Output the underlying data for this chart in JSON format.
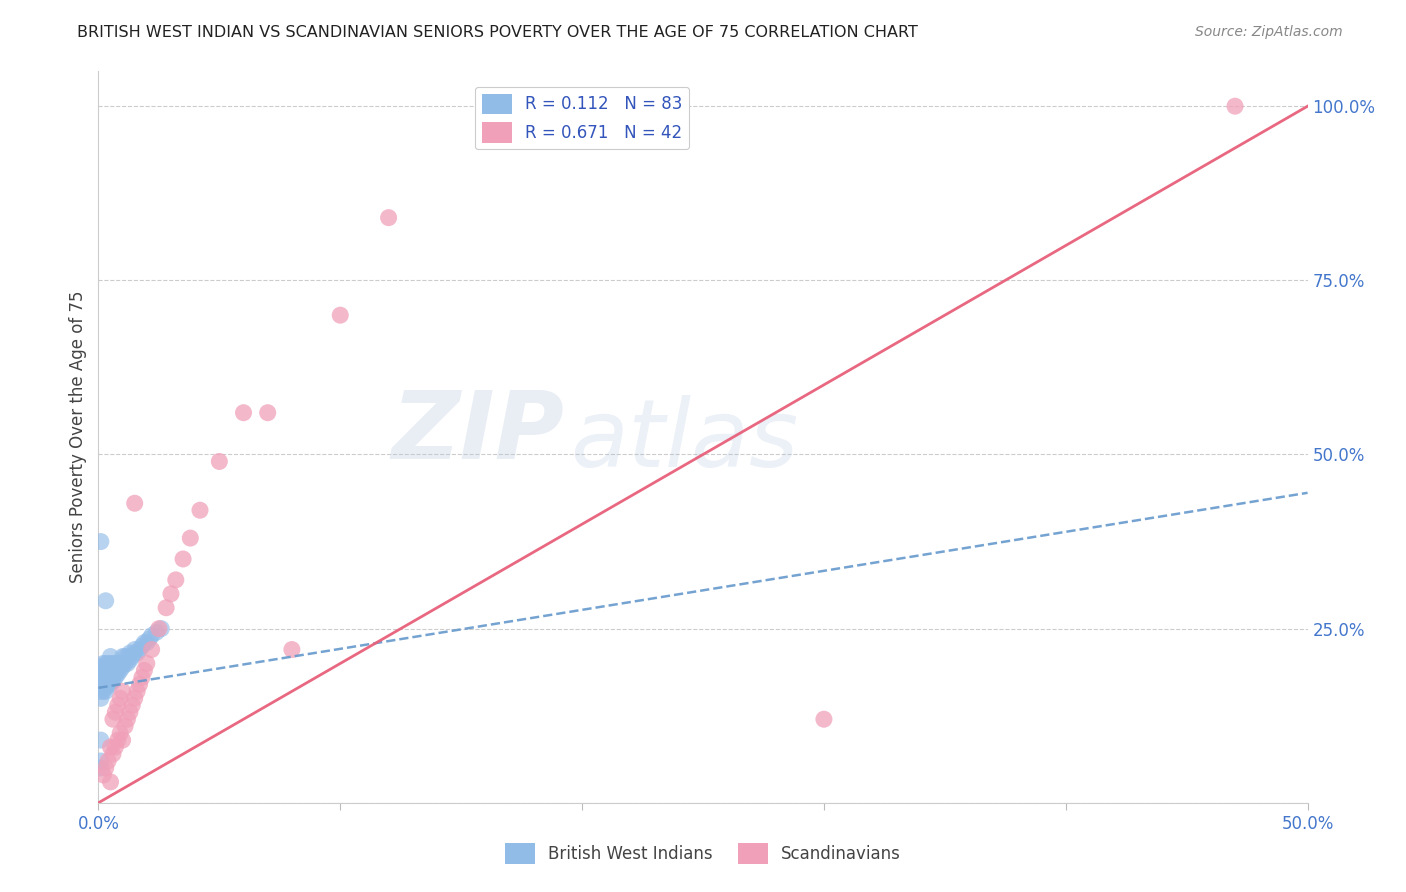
{
  "title": "BRITISH WEST INDIAN VS SCANDINAVIAN SENIORS POVERTY OVER THE AGE OF 75 CORRELATION CHART",
  "source": "Source: ZipAtlas.com",
  "ylabel": "Seniors Poverty Over the Age of 75",
  "watermark": "ZIPatlas",
  "blue_label": "British West Indians",
  "pink_label": "Scandinavians",
  "blue_R": 0.112,
  "blue_N": 83,
  "pink_R": 0.671,
  "pink_N": 42,
  "blue_color": "#92bce8",
  "pink_color": "#f0a0b8",
  "blue_line_color": "#6699cc",
  "pink_line_color": "#e8607a",
  "right_ytick_color": "#4477cc",
  "xtick_color": "#4477cc",
  "background_color": "#ffffff",
  "xlim": [
    0.0,
    0.5
  ],
  "ylim": [
    0.0,
    1.05
  ],
  "right_yticks": [
    0.25,
    0.5,
    0.75,
    1.0
  ],
  "right_yticklabels": [
    "25.0%",
    "50.0%",
    "75.0%",
    "100.0%"
  ],
  "blue_trend": [
    0.0,
    0.5,
    0.165,
    0.445
  ],
  "pink_trend": [
    0.0,
    0.5,
    0.0,
    1.0
  ],
  "blue_x": [
    0.0005,
    0.001,
    0.001,
    0.001,
    0.001,
    0.001,
    0.001,
    0.0015,
    0.0015,
    0.002,
    0.002,
    0.002,
    0.002,
    0.002,
    0.002,
    0.0025,
    0.0025,
    0.003,
    0.003,
    0.003,
    0.003,
    0.003,
    0.003,
    0.003,
    0.003,
    0.0035,
    0.0035,
    0.004,
    0.004,
    0.004,
    0.004,
    0.004,
    0.004,
    0.005,
    0.005,
    0.005,
    0.005,
    0.005,
    0.005,
    0.005,
    0.006,
    0.006,
    0.006,
    0.006,
    0.006,
    0.007,
    0.007,
    0.007,
    0.007,
    0.007,
    0.008,
    0.008,
    0.008,
    0.008,
    0.009,
    0.009,
    0.01,
    0.01,
    0.01,
    0.011,
    0.011,
    0.012,
    0.012,
    0.013,
    0.013,
    0.014,
    0.015,
    0.015,
    0.016,
    0.017,
    0.018,
    0.019,
    0.02,
    0.021,
    0.022,
    0.024,
    0.026,
    0.005,
    0.003,
    0.001,
    0.001,
    0.001,
    0.001
  ],
  "blue_y": [
    0.165,
    0.175,
    0.185,
    0.195,
    0.15,
    0.16,
    0.17,
    0.18,
    0.19,
    0.17,
    0.18,
    0.19,
    0.2,
    0.16,
    0.175,
    0.185,
    0.195,
    0.17,
    0.175,
    0.18,
    0.185,
    0.19,
    0.2,
    0.16,
    0.165,
    0.175,
    0.185,
    0.17,
    0.175,
    0.18,
    0.185,
    0.19,
    0.2,
    0.17,
    0.175,
    0.18,
    0.185,
    0.19,
    0.195,
    0.2,
    0.175,
    0.18,
    0.185,
    0.19,
    0.2,
    0.18,
    0.185,
    0.19,
    0.195,
    0.2,
    0.185,
    0.19,
    0.195,
    0.2,
    0.19,
    0.2,
    0.195,
    0.2,
    0.21,
    0.2,
    0.21,
    0.2,
    0.21,
    0.205,
    0.215,
    0.21,
    0.215,
    0.22,
    0.215,
    0.22,
    0.225,
    0.23,
    0.23,
    0.235,
    0.24,
    0.245,
    0.25,
    0.21,
    0.29,
    0.09,
    0.05,
    0.06,
    0.375
  ],
  "pink_x": [
    0.002,
    0.003,
    0.004,
    0.005,
    0.005,
    0.006,
    0.006,
    0.007,
    0.007,
    0.008,
    0.008,
    0.009,
    0.009,
    0.01,
    0.01,
    0.011,
    0.012,
    0.013,
    0.014,
    0.015,
    0.015,
    0.016,
    0.017,
    0.018,
    0.019,
    0.02,
    0.022,
    0.025,
    0.028,
    0.03,
    0.032,
    0.035,
    0.038,
    0.042,
    0.05,
    0.06,
    0.07,
    0.08,
    0.1,
    0.12,
    0.3,
    0.47
  ],
  "pink_y": [
    0.04,
    0.05,
    0.06,
    0.08,
    0.03,
    0.07,
    0.12,
    0.08,
    0.13,
    0.09,
    0.14,
    0.1,
    0.15,
    0.09,
    0.16,
    0.11,
    0.12,
    0.13,
    0.14,
    0.15,
    0.43,
    0.16,
    0.17,
    0.18,
    0.19,
    0.2,
    0.22,
    0.25,
    0.28,
    0.3,
    0.32,
    0.35,
    0.38,
    0.42,
    0.49,
    0.56,
    0.56,
    0.22,
    0.7,
    0.84,
    0.12,
    1.0
  ]
}
